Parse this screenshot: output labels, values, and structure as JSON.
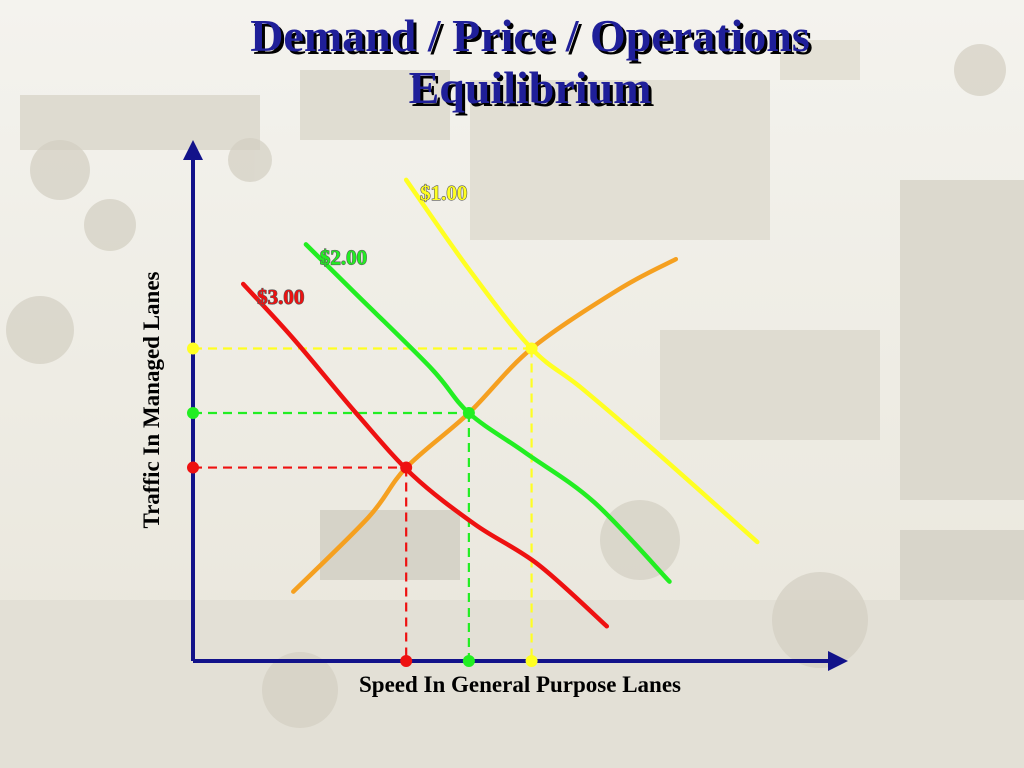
{
  "title": {
    "line1": "Demand / Price / Operations",
    "line2": "Equilibrium"
  },
  "chart_data": {
    "type": "line",
    "title": "Demand / Price / Operations Equilibrium",
    "xlabel": "Speed In General Purpose Lanes",
    "ylabel": "Traffic In Managed Lanes",
    "xlim": [
      0,
      10
    ],
    "ylim": [
      0,
      10
    ],
    "grid": false,
    "legend": "none",
    "series": [
      {
        "name": "$3.00",
        "kind": "demand",
        "color": "#ee1111",
        "points": [
          [
            0.8,
            7.6
          ],
          [
            1.6,
            6.5
          ],
          [
            2.6,
            5.0
          ],
          [
            3.5,
            3.75
          ],
          [
            4.5,
            2.75
          ],
          [
            5.5,
            1.95
          ],
          [
            6.6,
            0.7
          ]
        ]
      },
      {
        "name": "$2.00",
        "kind": "demand",
        "color": "#22ee22",
        "points": [
          [
            1.8,
            8.4
          ],
          [
            2.6,
            7.4
          ],
          [
            3.8,
            5.9
          ],
          [
            4.4,
            5.0
          ],
          [
            5.3,
            4.2
          ],
          [
            6.4,
            3.2
          ],
          [
            7.6,
            1.6
          ]
        ]
      },
      {
        "name": "$1.00",
        "kind": "demand",
        "color": "#ffff22",
        "points": [
          [
            3.4,
            9.7
          ],
          [
            4.4,
            7.9
          ],
          [
            5.4,
            6.3
          ],
          [
            6.2,
            5.5
          ],
          [
            7.4,
            4.2
          ],
          [
            9.0,
            2.4
          ]
        ]
      },
      {
        "name": "",
        "kind": "supply",
        "color": "#f5a020",
        "points": [
          [
            1.6,
            1.4
          ],
          [
            2.8,
            2.9
          ],
          [
            3.4,
            3.9
          ],
          [
            4.4,
            5.0
          ],
          [
            5.4,
            6.3
          ],
          [
            6.8,
            7.5
          ],
          [
            7.7,
            8.1
          ]
        ]
      }
    ],
    "equilibria": [
      {
        "price": "$3.00",
        "x": 3.4,
        "y": 3.9,
        "color": "#ee1111"
      },
      {
        "price": "$2.00",
        "x": 4.4,
        "y": 5.0,
        "color": "#22ee22"
      },
      {
        "price": "$1.00",
        "x": 5.4,
        "y": 6.3,
        "color": "#ffff22"
      }
    ],
    "axis_color": "#12128a"
  }
}
